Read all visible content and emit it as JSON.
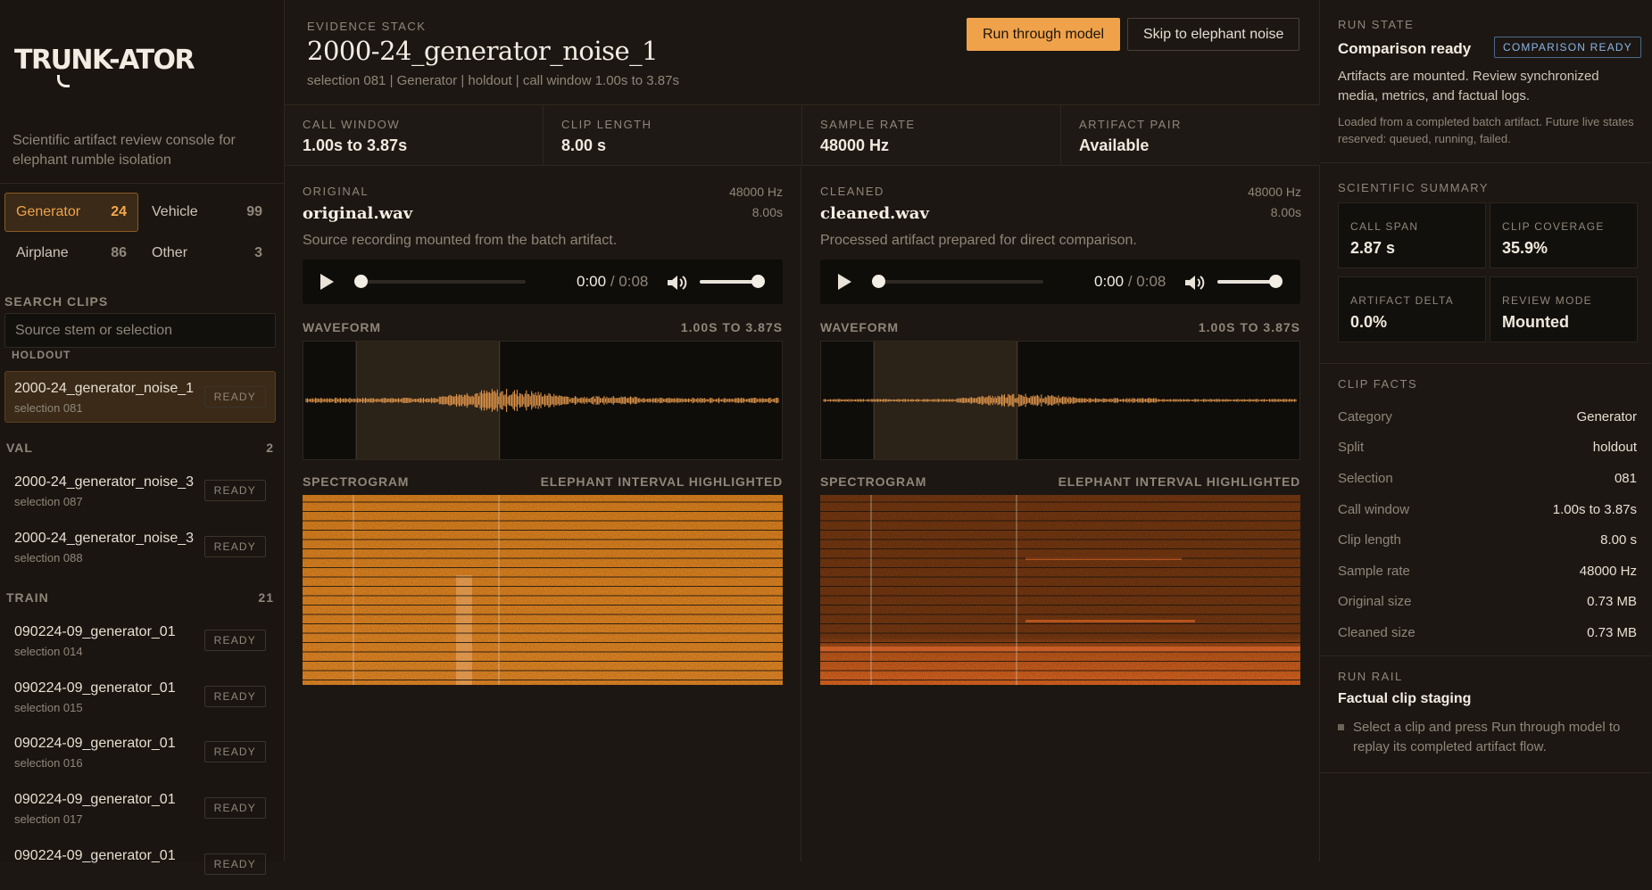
{
  "app": {
    "logo": "TRUNK-ATOR",
    "tagline": "Scientific artifact review console for elephant rumble isolation"
  },
  "sidebar": {
    "categories": [
      {
        "label": "Generator",
        "count": "24",
        "active": true
      },
      {
        "label": "Vehicle",
        "count": "99",
        "active": false
      },
      {
        "label": "Airplane",
        "count": "86",
        "active": false
      },
      {
        "label": "Other",
        "count": "3",
        "active": false
      }
    ],
    "search_label": "SEARCH CLIPS",
    "search_placeholder": "Source stem or selection",
    "cut_group_label": "HOLDOUT",
    "selected_clip": {
      "name": "2000-24_generator_noise_1",
      "sub": "selection 081",
      "badge": "READY"
    },
    "groups": [
      {
        "label": "VAL",
        "count": "2",
        "clips": [
          {
            "name": "2000-24_generator_noise_3",
            "sub": "selection 087",
            "badge": "READY"
          },
          {
            "name": "2000-24_generator_noise_3",
            "sub": "selection 088",
            "badge": "READY"
          }
        ]
      },
      {
        "label": "TRAIN",
        "count": "21",
        "clips": [
          {
            "name": "090224-09_generator_01",
            "sub": "selection 014",
            "badge": "READY"
          },
          {
            "name": "090224-09_generator_01",
            "sub": "selection 015",
            "badge": "READY"
          },
          {
            "name": "090224-09_generator_01",
            "sub": "selection 016",
            "badge": "READY"
          },
          {
            "name": "090224-09_generator_01",
            "sub": "selection 017",
            "badge": "READY"
          },
          {
            "name": "090224-09_generator_01",
            "sub": "",
            "badge": "READY"
          }
        ]
      }
    ]
  },
  "main": {
    "eyebrow": "EVIDENCE STACK",
    "title": "2000-24_generator_noise_1",
    "subtitle": "selection 081 | Generator | holdout | call window 1.00s to 3.87s",
    "run_button": "Run through model",
    "skip_button": "Skip to elephant noise",
    "stats": [
      {
        "label": "CALL WINDOW",
        "value": "1.00s to 3.87s"
      },
      {
        "label": "CLIP LENGTH",
        "value": "8.00 s"
      },
      {
        "label": "SAMPLE RATE",
        "value": "48000 Hz"
      },
      {
        "label": "ARTIFACT PAIR",
        "value": "Available"
      }
    ],
    "panes": {
      "original": {
        "label": "ORIGINAL",
        "rate": "48000 Hz",
        "duration": "8.00s",
        "filename": "original.wav",
        "description": "Source recording mounted from the batch artifact.",
        "time_current": "0:00",
        "time_total": "/ 0:08",
        "waveform_label": "WAVEFORM",
        "waveform_range": "1.00S TO 3.87S",
        "spectrogram_label": "SPECTROGRAM",
        "spectrogram_note": "ELEPHANT INTERVAL HIGHLIGHTED"
      },
      "cleaned": {
        "label": "CLEANED",
        "rate": "48000 Hz",
        "duration": "8.00s",
        "filename": "cleaned.wav",
        "description": "Processed artifact prepared for direct comparison.",
        "time_current": "0:00",
        "time_total": "/ 0:08",
        "waveform_label": "WAVEFORM",
        "waveform_range": "1.00S TO 3.87S",
        "spectrogram_label": "SPECTROGRAM",
        "spectrogram_note": "ELEPHANT INTERVAL HIGHLIGHTED"
      }
    }
  },
  "right": {
    "run_state": {
      "label": "RUN STATE",
      "title": "Comparison ready",
      "badge": "COMPARISON READY",
      "text": "Artifacts are mounted. Review synchronized media, metrics, and factual logs.",
      "note": "Loaded from a completed batch artifact. Future live states reserved: queued, running, failed."
    },
    "summary": {
      "label": "SCIENTIFIC SUMMARY",
      "cards": [
        {
          "label": "CALL SPAN",
          "value": "2.87 s"
        },
        {
          "label": "CLIP COVERAGE",
          "value": "35.9%"
        },
        {
          "label": "ARTIFACT DELTA",
          "value": "0.0%"
        },
        {
          "label": "REVIEW MODE",
          "value": "Mounted"
        }
      ]
    },
    "facts": {
      "label": "CLIP FACTS",
      "rows": [
        {
          "k": "Category",
          "v": "Generator"
        },
        {
          "k": "Split",
          "v": "holdout"
        },
        {
          "k": "Selection",
          "v": "081"
        },
        {
          "k": "Call window",
          "v": "1.00s to 3.87s"
        },
        {
          "k": "Clip length",
          "v": "8.00 s"
        },
        {
          "k": "Sample rate",
          "v": "48000 Hz"
        },
        {
          "k": "Original size",
          "v": "0.73 MB"
        },
        {
          "k": "Cleaned size",
          "v": "0.73 MB"
        }
      ]
    },
    "rail": {
      "label": "RUN RAIL",
      "title": "Factual clip staging",
      "item": "Select a clip and press Run through model to replay its completed artifact flow."
    }
  },
  "media": {
    "call_window_seconds": [
      1.0,
      3.87
    ],
    "clip_length_seconds": 8.0,
    "playback_progress": 0,
    "volume_level": 1.0
  },
  "colors": {
    "accent": "#f0a24b",
    "badge_blue": "#8ab4e8",
    "background": "#1c1712",
    "waveform": "#e0954a"
  }
}
